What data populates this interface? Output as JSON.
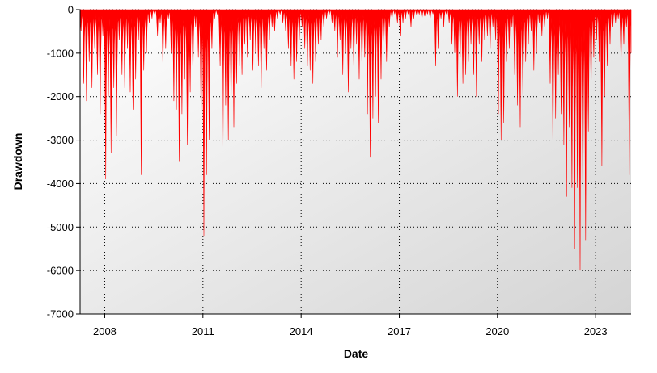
{
  "chart_data": {
    "type": "area",
    "title": "",
    "xlabel": "Date",
    "ylabel": "Drawdown",
    "ylim": [
      -7000,
      0
    ],
    "xlim": [
      "2007-04-01",
      "2024-02-01"
    ],
    "grid": true,
    "legend": "none",
    "y_ticks": [
      0,
      -1000,
      -2000,
      -3000,
      -4000,
      -5000,
      -6000,
      -7000
    ],
    "y_tick_labels": [
      "0",
      "-1000",
      "-2000",
      "-3000",
      "-4000",
      "-5000",
      "-6000",
      "-7000"
    ],
    "x_ticks": [
      "2008-01-01",
      "2011-01-01",
      "2014-01-01",
      "2017-01-01",
      "2020-01-01",
      "2023-01-01"
    ],
    "x_tick_labels": [
      "2008",
      "2011",
      "2014",
      "2017",
      "2020",
      "2023"
    ],
    "colors": {
      "fill": "#ff0000",
      "grid": "#000000",
      "plot_bg_start": "#ffffff",
      "plot_bg_end": "#d4d4d4"
    },
    "series": [
      {
        "x": [
          "2007-04-01",
          "2007-05-01",
          "2007-06-01",
          "2007-07-01",
          "2007-08-01",
          "2007-09-01",
          "2007-10-01",
          "2007-11-01",
          "2007-12-01",
          "2008-01-01",
          "2008-02-01",
          "2008-03-01",
          "2008-04-01",
          "2008-05-01",
          "2008-06-01",
          "2008-07-01",
          "2008-08-01",
          "2008-09-01",
          "2008-10-01",
          "2008-11-01",
          "2008-12-01",
          "2009-01-01",
          "2009-02-01",
          "2009-03-01",
          "2009-04-01",
          "2009-05-01",
          "2009-06-01",
          "2009-07-01",
          "2009-08-01",
          "2009-09-01",
          "2009-10-01",
          "2009-11-01",
          "2009-12-01",
          "2010-01-01",
          "2010-02-01",
          "2010-03-01",
          "2010-04-01",
          "2010-05-01",
          "2010-06-01",
          "2010-07-01",
          "2010-08-01",
          "2010-09-01",
          "2010-10-01",
          "2010-11-01",
          "2010-12-01",
          "2011-01-01",
          "2011-02-01",
          "2011-03-01",
          "2011-04-01",
          "2011-05-01",
          "2011-06-01",
          "2011-07-01",
          "2011-08-01",
          "2011-09-01",
          "2011-10-01",
          "2011-11-01",
          "2011-12-01",
          "2012-01-01",
          "2012-02-01",
          "2012-03-01",
          "2012-04-01",
          "2012-05-01",
          "2012-06-01",
          "2012-07-01",
          "2012-08-01",
          "2012-09-01",
          "2012-10-01",
          "2012-11-01",
          "2012-12-01",
          "2013-01-01",
          "2013-02-01",
          "2013-03-01",
          "2013-04-01",
          "2013-05-01",
          "2013-06-01",
          "2013-07-01",
          "2013-08-01",
          "2013-09-01",
          "2013-10-01",
          "2013-11-01",
          "2013-12-01",
          "2014-01-01",
          "2014-02-01",
          "2014-03-01",
          "2014-04-01",
          "2014-05-01",
          "2014-06-01",
          "2014-07-01",
          "2014-08-01",
          "2014-09-01",
          "2014-10-01",
          "2014-11-01",
          "2014-12-01",
          "2015-01-01",
          "2015-02-01",
          "2015-03-01",
          "2015-04-01",
          "2015-05-01",
          "2015-06-01",
          "2015-07-01",
          "2015-08-01",
          "2015-09-01",
          "2015-10-01",
          "2015-11-01",
          "2015-12-01",
          "2016-01-01",
          "2016-02-01",
          "2016-03-01",
          "2016-04-01",
          "2016-05-01",
          "2016-06-01",
          "2016-07-01",
          "2016-08-01",
          "2016-09-01",
          "2016-10-01",
          "2016-11-01",
          "2016-12-01",
          "2017-01-01",
          "2017-02-01",
          "2017-03-01",
          "2017-04-01",
          "2017-05-01",
          "2017-06-01",
          "2017-07-01",
          "2017-08-01",
          "2017-09-01",
          "2017-10-01",
          "2017-11-01",
          "2017-12-01",
          "2018-01-01",
          "2018-02-01",
          "2018-03-01",
          "2018-04-01",
          "2018-05-01",
          "2018-06-01",
          "2018-07-01",
          "2018-08-01",
          "2018-09-01",
          "2018-10-01",
          "2018-11-01",
          "2018-12-01",
          "2019-01-01",
          "2019-02-01",
          "2019-03-01",
          "2019-04-01",
          "2019-05-01",
          "2019-06-01",
          "2019-07-01",
          "2019-08-01",
          "2019-09-01",
          "2019-10-01",
          "2019-11-01",
          "2019-12-01",
          "2020-01-01",
          "2020-02-01",
          "2020-03-01",
          "2020-04-01",
          "2020-05-01",
          "2020-06-01",
          "2020-07-01",
          "2020-08-01",
          "2020-09-01",
          "2020-10-01",
          "2020-11-01",
          "2020-12-01",
          "2021-01-01",
          "2021-02-01",
          "2021-03-01",
          "2021-04-01",
          "2021-05-01",
          "2021-06-01",
          "2021-07-01",
          "2021-08-01",
          "2021-09-01",
          "2021-10-01",
          "2021-11-01",
          "2021-12-01",
          "2022-01-01",
          "2022-02-01",
          "2022-03-01",
          "2022-04-01",
          "2022-05-01",
          "2022-06-01",
          "2022-07-01",
          "2022-08-01",
          "2022-09-01",
          "2022-10-01",
          "2022-11-01",
          "2022-12-01",
          "2023-01-01",
          "2023-02-01",
          "2023-03-01",
          "2023-04-01",
          "2023-05-01",
          "2023-06-01",
          "2023-07-01",
          "2023-08-01",
          "2023-09-01",
          "2023-10-01",
          "2023-11-01",
          "2023-12-01",
          "2024-01-01",
          "2024-02-01"
        ],
        "y": [
          -500,
          -1700,
          -2100,
          -1200,
          -1800,
          -900,
          -1500,
          -2400,
          -600,
          -3900,
          -2000,
          -3300,
          -1800,
          -2900,
          -700,
          -1500,
          -1800,
          -900,
          -1900,
          -2300,
          -1600,
          -700,
          -3800,
          -1400,
          -1000,
          -300,
          -200,
          -100,
          -600,
          -300,
          -1300,
          -900,
          -200,
          -1000,
          -2100,
          -2300,
          -3500,
          -2400,
          -1600,
          -3100,
          -1900,
          -1500,
          -400,
          -1100,
          -2600,
          -5200,
          -3800,
          -3000,
          -900,
          -200,
          -100,
          -1300,
          -3600,
          -2200,
          -3000,
          -2200,
          -2700,
          -1700,
          -1300,
          -1500,
          -800,
          -1100,
          -700,
          -1400,
          -1000,
          -1300,
          -1800,
          -900,
          -1400,
          -700,
          -400,
          -500,
          -200,
          -100,
          -300,
          -500,
          -900,
          -1300,
          -1600,
          -1200,
          -700,
          -400,
          -900,
          -1300,
          -1400,
          -1700,
          -1200,
          -800,
          -700,
          -400,
          -200,
          -100,
          -300,
          -500,
          -1100,
          -700,
          -1500,
          -1000,
          -1900,
          -900,
          -1300,
          -800,
          -1600,
          -1300,
          -1100,
          -2400,
          -3400,
          -2500,
          -2000,
          -2600,
          -1600,
          -800,
          -1200,
          -400,
          -200,
          -100,
          -300,
          -600,
          -300,
          -200,
          -100,
          -400,
          -200,
          -100,
          -100,
          -200,
          -150,
          -100,
          -200,
          -100,
          -1300,
          -900,
          -200,
          -400,
          -100,
          -300,
          -800,
          -1000,
          -2000,
          -1100,
          -1700,
          -1500,
          -1200,
          -800,
          -1500,
          -2000,
          -800,
          -1200,
          -700,
          -600,
          -900,
          -400,
          -700,
          -2400,
          -3000,
          -2600,
          -1200,
          -900,
          -400,
          -1500,
          -2200,
          -2700,
          -2000,
          -1200,
          -800,
          -500,
          -1400,
          -1000,
          -300,
          -600,
          -400,
          -200,
          -1700,
          -3200,
          -2500,
          -1500,
          -2400,
          -3100,
          -4300,
          -2700,
          -4100,
          -5500,
          -4100,
          -6000,
          -4400,
          -5300,
          -2800,
          -1800,
          -1100,
          -700,
          -1200,
          -3600,
          -2000,
          -1300,
          -800,
          -400,
          -300,
          -200,
          -1200,
          -800,
          -400,
          -3800,
          -1000
        ]
      }
    ]
  }
}
